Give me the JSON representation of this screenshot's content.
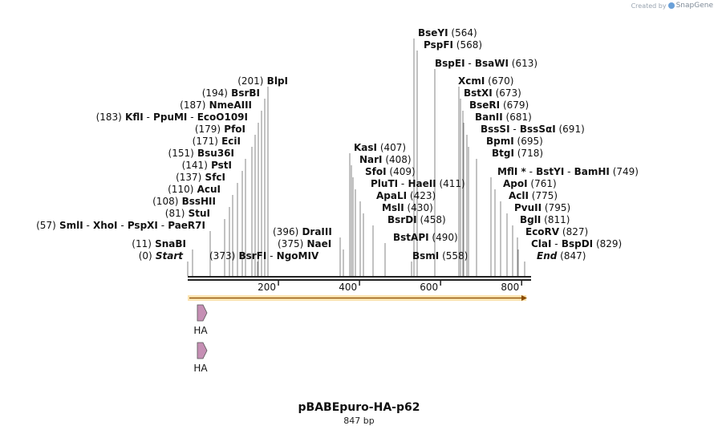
{
  "credit": {
    "prefix": "Created by",
    "brand": "SnapGene"
  },
  "plasmid": {
    "name": "pBABEpuro-HA-p62",
    "size_label": "847 bp",
    "length": 847
  },
  "ruler": {
    "ticks": [
      "200",
      "400",
      "600",
      "800"
    ]
  },
  "sites": [
    {
      "parts": [
        "(201)",
        "BlpI"
      ]
    },
    {
      "parts": [
        "(194)",
        "BsrBI"
      ]
    },
    {
      "parts": [
        "(187)",
        "NmeAIII"
      ]
    },
    {
      "parts": [
        "(183)",
        "KflI",
        "-",
        "PpuMI",
        "-",
        "EcoO109I"
      ]
    },
    {
      "parts": [
        "(179)",
        "PfoI"
      ]
    },
    {
      "parts": [
        "(171)",
        "EciI"
      ]
    },
    {
      "parts": [
        "(151)",
        "Bsu36I"
      ]
    },
    {
      "parts": [
        "(141)",
        "PstI"
      ]
    },
    {
      "parts": [
        "(137)",
        "SfcI"
      ]
    },
    {
      "parts": [
        "(110)",
        "AcuI"
      ]
    },
    {
      "parts": [
        "(108)",
        "BssHII"
      ]
    },
    {
      "parts": [
        "(81)",
        "StuI"
      ]
    },
    {
      "parts": [
        "(57)",
        "SmlI",
        "-",
        "XhoI",
        "-",
        "PspXI",
        "-",
        "PaeR7I"
      ]
    },
    {
      "parts": [
        "(11)",
        "SnaBI"
      ]
    },
    {
      "parts": [
        "(0)",
        "Start"
      ]
    },
    {
      "parts": [
        "(373)",
        "BsrFI",
        "-",
        "NgoMIV"
      ]
    },
    {
      "parts": [
        "(396)",
        "DraIII"
      ]
    },
    {
      "parts": [
        "(375)",
        "NaeI"
      ]
    },
    {
      "parts": [
        "KasI",
        "(407)"
      ]
    },
    {
      "parts": [
        "NarI",
        "(408)"
      ]
    },
    {
      "parts": [
        "SfoI",
        "(409)"
      ]
    },
    {
      "parts": [
        "PluTI",
        "-",
        "HaeII",
        "(411)"
      ]
    },
    {
      "parts": [
        "ApaLI",
        "(423)"
      ]
    },
    {
      "parts": [
        "MslI",
        "(430)"
      ]
    },
    {
      "parts": [
        "BsrDI",
        "(458)"
      ]
    },
    {
      "parts": [
        "BstAPI",
        "(490)"
      ]
    },
    {
      "parts": [
        "BsmI",
        "(558)"
      ]
    },
    {
      "parts": [
        "BseYI",
        "(564)"
      ]
    },
    {
      "parts": [
        "PspFI",
        "(568)"
      ]
    },
    {
      "parts": [
        "BspEI",
        "-",
        "BsaWI",
        "(613)"
      ]
    },
    {
      "parts": [
        "XcmI",
        "(670)"
      ]
    },
    {
      "parts": [
        "BstXI",
        "(673)"
      ]
    },
    {
      "parts": [
        "BseRI",
        "(679)"
      ]
    },
    {
      "parts": [
        "BanII",
        "(681)"
      ]
    },
    {
      "parts": [
        "BssSI",
        "-",
        "BssSαI",
        "(691)"
      ]
    },
    {
      "parts": [
        "BpmI",
        "(695)"
      ]
    },
    {
      "parts": [
        "BtgI",
        "(718)"
      ]
    },
    {
      "parts": [
        "MflI *",
        "-",
        "BstYI",
        "-",
        "BamHI",
        "(749)"
      ]
    },
    {
      "parts": [
        "ApoI",
        "(761)"
      ]
    },
    {
      "parts": [
        "AclI",
        "(775)"
      ]
    },
    {
      "parts": [
        "PvuII",
        "(795)"
      ]
    },
    {
      "parts": [
        "BglI",
        "(811)"
      ]
    },
    {
      "parts": [
        "EcoRV",
        "(827)"
      ]
    },
    {
      "parts": [
        "ClaI",
        "-",
        "BspDI",
        "(829)"
      ]
    },
    {
      "parts": [
        "End",
        "(847)"
      ]
    }
  ],
  "features": [
    {
      "label": "HA",
      "color": "#c58fb4"
    },
    {
      "label": "HA",
      "color": "#c58fb4"
    }
  ],
  "orf_color": "#f0a830"
}
